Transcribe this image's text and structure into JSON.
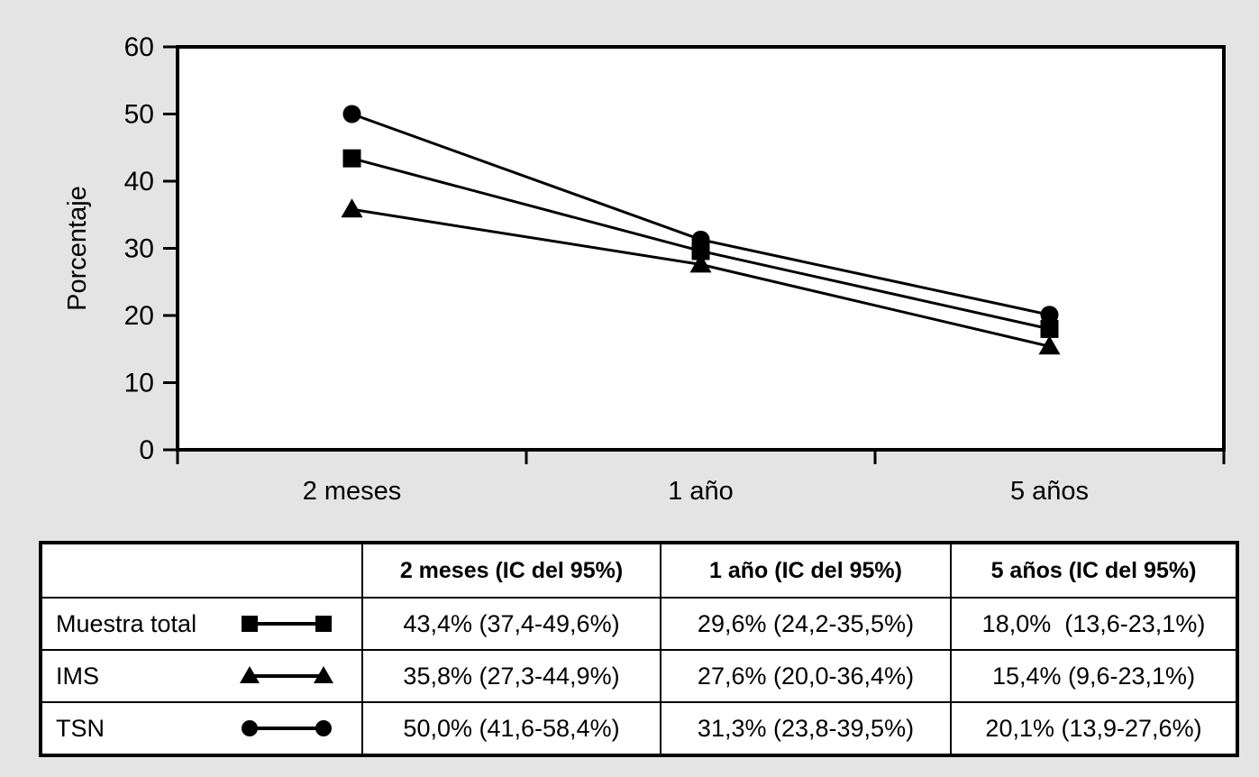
{
  "colors": {
    "background": "#e4e4e4",
    "plot_background": "#ffffff",
    "ink": "#000000"
  },
  "chart_data": {
    "type": "line",
    "categories": [
      "2 meses",
      "1 año",
      "5 años"
    ],
    "series": [
      {
        "name": "Muestra total",
        "marker": "square",
        "values": [
          43.4,
          29.6,
          18.0
        ]
      },
      {
        "name": "IMS",
        "marker": "triangle",
        "values": [
          35.8,
          27.6,
          15.4
        ]
      },
      {
        "name": "TSN",
        "marker": "circle",
        "values": [
          50.0,
          31.3,
          20.1
        ]
      }
    ],
    "title": "",
    "xlabel": "",
    "ylabel": "Porcentaje",
    "ylim": [
      0,
      60
    ],
    "yticks": [
      0,
      10,
      20,
      30,
      40,
      50,
      60
    ],
    "grid": false,
    "legend_position": "table-below"
  },
  "table": {
    "headers": [
      "",
      "2 meses (IC del 95%)",
      "1 año (IC del 95%)",
      "5 años (IC del 95%)"
    ],
    "rows": [
      {
        "label": "Muestra total",
        "marker": "square",
        "values": [
          "43,4% (37,4-49,6%)",
          "29,6% (24,2-35,5%)",
          "18,0%  (13,6-23,1%)"
        ]
      },
      {
        "label": "IMS",
        "marker": "triangle",
        "values": [
          "35,8% (27,3-44,9%)",
          "27,6% (20,0-36,4%)",
          "15,4% (9,6-23,1%)"
        ]
      },
      {
        "label": "TSN",
        "marker": "circle",
        "values": [
          "50,0% (41,6-58,4%)",
          "31,3% (23,8-39,5%)",
          "20,1% (13,9-27,6%)"
        ]
      }
    ]
  }
}
